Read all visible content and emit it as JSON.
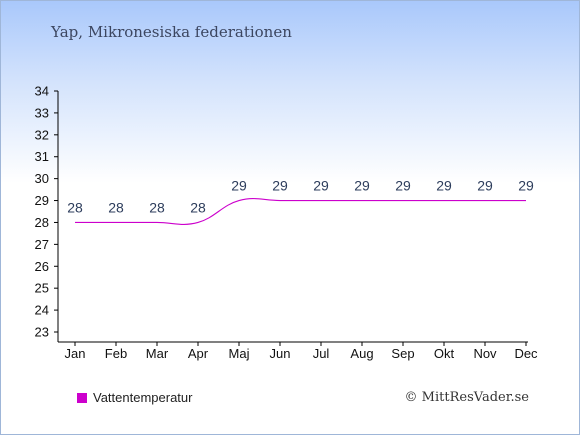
{
  "header": {
    "title": "Yap, Mikronesiska federationen"
  },
  "legend": {
    "label": "Vattentemperatur",
    "color": "#cc00cc"
  },
  "footer": {
    "credit": "© MittResVader.se"
  },
  "colors": {
    "line": "#cc00cc",
    "axis": "#000000",
    "value_label": "#2d3d5c"
  },
  "chart_data": {
    "type": "line",
    "categories": [
      "Jan",
      "Feb",
      "Mar",
      "Apr",
      "Maj",
      "Jun",
      "Jul",
      "Aug",
      "Sep",
      "Okt",
      "Nov",
      "Dec"
    ],
    "series": [
      {
        "name": "Vattentemperatur",
        "values": [
          28,
          28,
          28,
          28,
          29,
          29,
          29,
          29,
          29,
          29,
          29,
          29
        ]
      }
    ],
    "ylim": [
      23,
      34
    ],
    "yticks": [
      23,
      24,
      25,
      26,
      27,
      28,
      29,
      30,
      31,
      32,
      33,
      34
    ],
    "grid": false,
    "legend_position": "bottom-left"
  }
}
